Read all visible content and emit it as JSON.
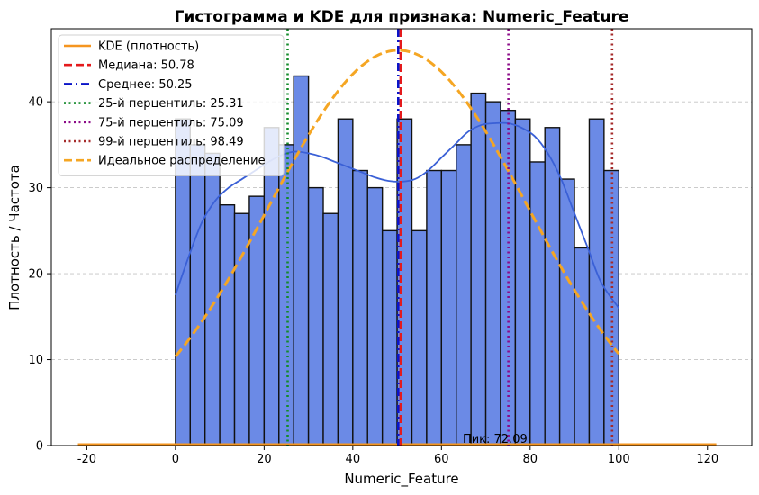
{
  "chart_data": {
    "type": "bar",
    "title": "Гистограмма и KDE для признака: Numeric_Feature",
    "xlabel": "Numeric_Feature",
    "ylabel": "Плотность / Частота",
    "xlim": [
      -28,
      130
    ],
    "ylim": [
      0,
      48.5
    ],
    "xticks": [
      -20,
      0,
      20,
      40,
      60,
      80,
      100,
      120
    ],
    "yticks": [
      0,
      10,
      20,
      30,
      40
    ],
    "grid": "y-dashed",
    "legend_position": "top-left",
    "histogram": {
      "color": "#6b8ae6",
      "bin_start": 0,
      "bin_width": 3.3333,
      "counts": [
        38,
        35,
        34,
        28,
        27,
        29,
        37,
        35,
        43,
        30,
        27,
        38,
        32,
        30,
        25,
        38,
        25,
        32,
        32,
        35,
        41,
        40,
        39,
        38,
        33,
        37,
        31,
        23,
        38,
        32
      ]
    },
    "kde": {
      "name": "KDE (плотность)",
      "color": "#3a60d6",
      "x": [
        0,
        3,
        6,
        9,
        12,
        15,
        18,
        21,
        24,
        27,
        30,
        33,
        36,
        39,
        42,
        45,
        48,
        51,
        54,
        57,
        60,
        63,
        66,
        69,
        72,
        75,
        78,
        81,
        84,
        87,
        90,
        93,
        96,
        100
      ],
      "y": [
        17.5,
        22,
        26,
        28.5,
        30,
        31,
        32,
        33,
        33.8,
        34.2,
        34,
        33.6,
        33,
        32.4,
        31.8,
        31.2,
        30.8,
        30.7,
        31,
        32,
        33.5,
        35,
        36.5,
        37.3,
        37.5,
        37.5,
        37,
        36,
        34,
        31,
        27,
        23,
        19,
        16
      ]
    },
    "baseline_kde": {
      "color": "#f5951f",
      "x": [
        -22,
        122
      ],
      "y": [
        0.15,
        0.15
      ]
    },
    "ideal_distribution": {
      "name": "Идеальное распределение",
      "color": "#f5a623",
      "mean": 50.25,
      "sd": 29.1,
      "peak": 46,
      "x_range": [
        0,
        100
      ]
    },
    "vlines": [
      {
        "name": "Медиана: 50.78",
        "x": 50.78,
        "color": "#e41a1c",
        "dash": "dashed"
      },
      {
        "name": "Среднее: 50.25",
        "x": 50.25,
        "color": "#0a14c8",
        "dash": "dashdot"
      },
      {
        "name": "25-й перцентиль: 25.31",
        "x": 25.31,
        "color": "#138a2a",
        "dash": "dotted"
      },
      {
        "name": "75-й перцентиль: 75.09",
        "x": 75.09,
        "color": "#8b0a87",
        "dash": "dotted"
      },
      {
        "name": "99-й перцентиль: 98.49",
        "x": 98.49,
        "color": "#a52a2a",
        "dash": "dotted"
      }
    ],
    "annotation": {
      "text": "Пик: 72.09",
      "x": 72.09,
      "y": 0.1
    }
  }
}
